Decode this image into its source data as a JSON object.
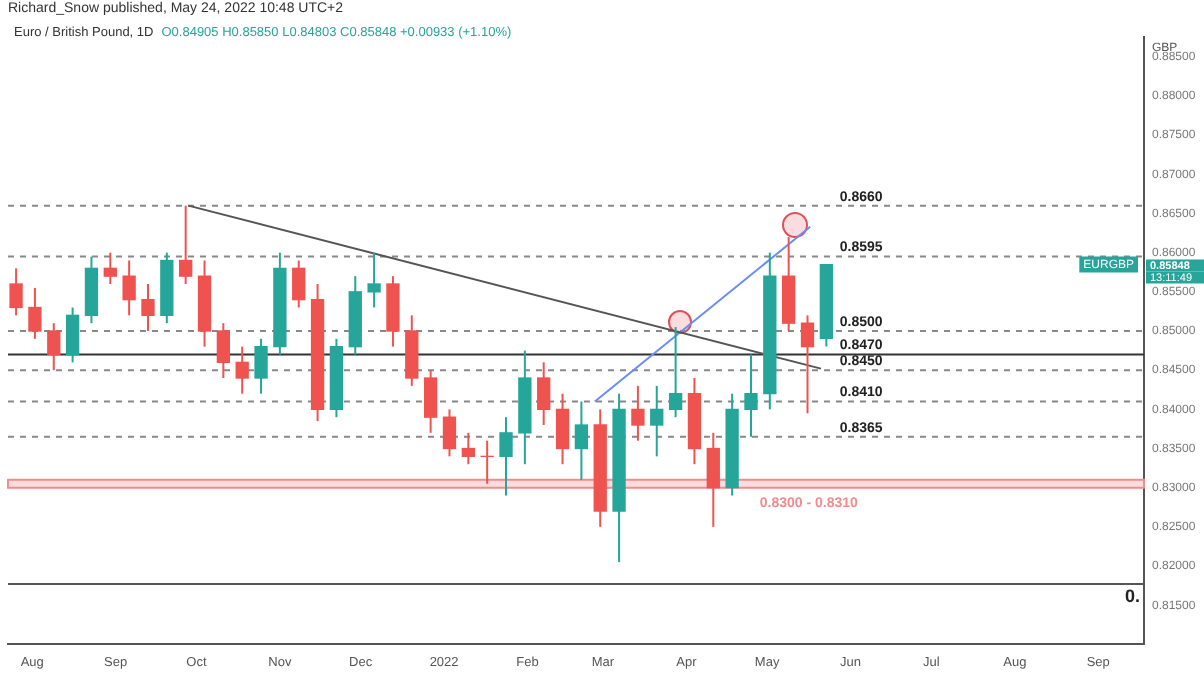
{
  "chart_data": {
    "type": "candlestick",
    "title": "Euro / British Pound, 1D",
    "subtitle": "Richard_Snow published, May 24, 2022 10:48 UTC+2",
    "ylabel": "GBP",
    "annotations": [
      "O0.84905 H0.85850 L0.84803 C0.85848 +0.00933 (+1.10%)",
      "0.",
      "0.85848",
      "13:11:49",
      {
        "text": "EURGBP",
        "y": 0.85848
      }
    ],
    "x": [
      "2021-07-26",
      "2021-08-02",
      "2021-08-09",
      "2021-08-16",
      "2021-08-23",
      "2021-08-30",
      "2021-09-06",
      "2021-09-13",
      "2021-09-20",
      "2021-09-27",
      "2021-10-04",
      "2021-10-11",
      "2021-10-18",
      "2021-10-25",
      "2021-11-01",
      "2021-11-08",
      "2021-11-15",
      "2021-11-22",
      "2021-11-29",
      "2021-12-06",
      "2021-12-13",
      "2021-12-20",
      "2021-12-27",
      "2022-01-03",
      "2022-01-10",
      "2022-01-17",
      "2022-01-24",
      "2022-01-31",
      "2022-02-07",
      "2022-02-14",
      "2022-02-21",
      "2022-02-28",
      "2022-03-07",
      "2022-03-14",
      "2022-03-21",
      "2022-03-28",
      "2022-04-04",
      "2022-04-11",
      "2022-04-18",
      "2022-04-25",
      "2022-05-02",
      "2022-05-09",
      "2022-05-16",
      "2022-05-23"
    ],
    "ohlc": [
      [
        0.856,
        0.858,
        0.852,
        0.853
      ],
      [
        0.853,
        0.8555,
        0.849,
        0.85
      ],
      [
        0.85,
        0.851,
        0.845,
        0.847
      ],
      [
        0.847,
        0.853,
        0.846,
        0.852
      ],
      [
        0.852,
        0.8595,
        0.851,
        0.858
      ],
      [
        0.858,
        0.86,
        0.856,
        0.857
      ],
      [
        0.857,
        0.859,
        0.852,
        0.854
      ],
      [
        0.854,
        0.856,
        0.85,
        0.852
      ],
      [
        0.852,
        0.86,
        0.851,
        0.859
      ],
      [
        0.859,
        0.866,
        0.856,
        0.857
      ],
      [
        0.857,
        0.859,
        0.848,
        0.85
      ],
      [
        0.85,
        0.851,
        0.844,
        0.846
      ],
      [
        0.846,
        0.848,
        0.842,
        0.844
      ],
      [
        0.844,
        0.849,
        0.842,
        0.848
      ],
      [
        0.848,
        0.86,
        0.847,
        0.858
      ],
      [
        0.858,
        0.859,
        0.853,
        0.854
      ],
      [
        0.854,
        0.856,
        0.8385,
        0.84
      ],
      [
        0.84,
        0.849,
        0.839,
        0.848
      ],
      [
        0.848,
        0.857,
        0.847,
        0.855
      ],
      [
        0.855,
        0.86,
        0.853,
        0.856
      ],
      [
        0.856,
        0.857,
        0.848,
        0.85
      ],
      [
        0.85,
        0.852,
        0.843,
        0.844
      ],
      [
        0.844,
        0.845,
        0.837,
        0.839
      ],
      [
        0.839,
        0.84,
        0.834,
        0.835
      ],
      [
        0.835,
        0.837,
        0.833,
        0.834
      ],
      [
        0.834,
        0.836,
        0.8305,
        0.834
      ],
      [
        0.834,
        0.839,
        0.829,
        0.837
      ],
      [
        0.837,
        0.8475,
        0.833,
        0.844
      ],
      [
        0.844,
        0.846,
        0.838,
        0.84
      ],
      [
        0.84,
        0.842,
        0.833,
        0.835
      ],
      [
        0.835,
        0.841,
        0.831,
        0.838
      ],
      [
        0.838,
        0.84,
        0.825,
        0.827
      ],
      [
        0.827,
        0.842,
        0.8205,
        0.84
      ],
      [
        0.84,
        0.843,
        0.836,
        0.838
      ],
      [
        0.838,
        0.843,
        0.834,
        0.84
      ],
      [
        0.84,
        0.8505,
        0.839,
        0.842
      ],
      [
        0.842,
        0.844,
        0.833,
        0.835
      ],
      [
        0.835,
        0.837,
        0.825,
        0.83
      ],
      [
        0.83,
        0.842,
        0.829,
        0.84
      ],
      [
        0.84,
        0.847,
        0.8365,
        0.842
      ],
      [
        0.842,
        0.86,
        0.84,
        0.857
      ],
      [
        0.857,
        0.862,
        0.85,
        0.851
      ],
      [
        0.851,
        0.852,
        0.8395,
        0.848
      ],
      [
        0.84905,
        0.8585,
        0.84803,
        0.85848
      ]
    ],
    "colors": [
      "#ef5350",
      "#ef5350",
      "#ef5350",
      "#26a69a",
      "#26a69a",
      "#ef5350",
      "#ef5350",
      "#ef5350",
      "#26a69a",
      "#ef5350",
      "#ef5350",
      "#ef5350",
      "#ef5350",
      "#26a69a",
      "#26a69a",
      "#ef5350",
      "#ef5350",
      "#26a69a",
      "#26a69a",
      "#26a69a",
      "#ef5350",
      "#ef5350",
      "#ef5350",
      "#ef5350",
      "#ef5350",
      "#ef5350",
      "#26a69a",
      "#26a69a",
      "#ef5350",
      "#ef5350",
      "#26a69a",
      "#ef5350",
      "#26a69a",
      "#ef5350",
      "#26a69a",
      "#26a69a",
      "#ef5350",
      "#ef5350",
      "#26a69a",
      "#26a69a",
      "#26a69a",
      "#ef5350",
      "#ef5350",
      "#26a69a"
    ],
    "series": [
      {
        "type": "line",
        "color": "#555555",
        "x": [
          "2021-09-28",
          "2022-05-21"
        ],
        "values": [
          0.866,
          0.8452
        ]
      },
      {
        "type": "line",
        "color": "#6b8cf5",
        "x": [
          "2022-02-26",
          "2022-05-17"
        ],
        "values": [
          0.841,
          0.8633
        ]
      }
    ],
    "ref_lines": [
      {
        "axis": "y",
        "value": 0.866,
        "label": "0.8660",
        "color": "#888888",
        "line_style": "dashed"
      },
      {
        "axis": "y",
        "value": 0.8595,
        "label": "0.8595",
        "color": "#888888",
        "line_style": "dashed"
      },
      {
        "axis": "y",
        "value": 0.85,
        "label": "0.8500",
        "color": "#888888",
        "line_style": "dashed"
      },
      {
        "axis": "y",
        "value": 0.847,
        "label": "0.8470",
        "color": "#333333",
        "line_style": "solid"
      },
      {
        "axis": "y",
        "value": 0.845,
        "label": "0.8450",
        "color": "#888888",
        "line_style": "dashed"
      },
      {
        "axis": "y",
        "value": 0.841,
        "label": "0.8410",
        "color": "#888888",
        "line_style": "dashed"
      },
      {
        "axis": "y",
        "value": 0.8365,
        "label": "0.8365",
        "color": "#888888",
        "line_style": "dashed"
      },
      {
        "axis": "y",
        "value": 0.8177,
        "color": "#555555",
        "line_style": "solid"
      }
    ],
    "bands": [
      {
        "axis": "y",
        "from": 0.83,
        "to": 0.831,
        "label": "0.8300 - 0.8310",
        "color": "#f28b8b"
      }
    ],
    "xlim": [
      "2021-07-23",
      "2022-09-18"
    ],
    "xticks": [
      {
        "value": "2021-08-01",
        "label": "Aug"
      },
      {
        "value": "2021-09-01",
        "label": "Sep"
      },
      {
        "value": "2021-10-01",
        "label": "Oct"
      },
      {
        "value": "2021-11-01",
        "label": "Nov"
      },
      {
        "value": "2021-12-01",
        "label": "Dec"
      },
      {
        "value": "2022-01-01",
        "label": "2022"
      },
      {
        "value": "2022-02-01",
        "label": "Feb"
      },
      {
        "value": "2022-03-01",
        "label": "Mar"
      },
      {
        "value": "2022-04-01",
        "label": "Apr"
      },
      {
        "value": "2022-05-01",
        "label": "May"
      },
      {
        "value": "2022-06-01",
        "label": "Jun"
      },
      {
        "value": "2022-07-01",
        "label": "Jul"
      },
      {
        "value": "2022-08-01",
        "label": "Aug"
      },
      {
        "value": "2022-09-01",
        "label": "Sep"
      }
    ],
    "ylim": [
      0.81,
      0.8875
    ],
    "yticks": [
      {
        "value": 0.815,
        "label": "0.81500"
      },
      {
        "value": 0.82,
        "label": "0.82000"
      },
      {
        "value": 0.825,
        "label": "0.82500"
      },
      {
        "value": 0.83,
        "label": "0.83000"
      },
      {
        "value": 0.835,
        "label": "0.83500"
      },
      {
        "value": 0.84,
        "label": "0.84000"
      },
      {
        "value": 0.845,
        "label": "0.84500"
      },
      {
        "value": 0.85,
        "label": "0.85000"
      },
      {
        "value": 0.855,
        "label": "0.85500"
      },
      {
        "value": 0.86,
        "label": "0.86000"
      },
      {
        "value": 0.865,
        "label": "0.86500"
      },
      {
        "value": 0.87,
        "label": "0.87000"
      },
      {
        "value": 0.875,
        "label": "0.87500"
      },
      {
        "value": 0.88,
        "label": "0.88000"
      },
      {
        "value": 0.885,
        "label": "0.88500"
      }
    ],
    "grid": false,
    "legend": false
  }
}
